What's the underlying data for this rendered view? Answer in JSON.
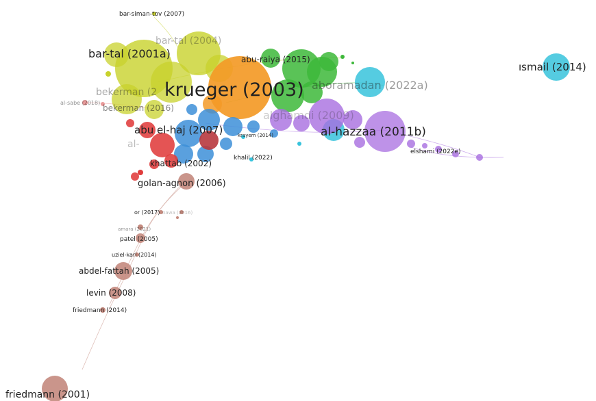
{
  "clusters": {
    "yellow": "#c8d22c",
    "orange": "#f39a27",
    "green": "#3db83a",
    "cyan": "#37c3dc",
    "purple": "#a86ee0",
    "blue": "#3d8fd8",
    "red": "#e03c3c",
    "brown": "#c48a7e",
    "pink": "#e99a9a"
  },
  "labels": {
    "bar_siman_tov": "bar-siman-tov (2007)",
    "bar_tal_2004": "bar-tal (2004)",
    "bar_tal_2001a": "bar-tal (2001a)",
    "bekerman_a": "bekerman (2",
    "al_sabe": "al-sabe (2018)",
    "bekerman_b": "bekerman (2016)",
    "krueger": "krueger (2003)",
    "abu_raiya": "abu-raiya (2015)",
    "abu_ramadan": "aboramadan (2022a)",
    "ismail": "ısmail (2014)",
    "al_hazzaa": "al-hazzaa (2011b)",
    "alghamdi": "alghamdi (2009)",
    "abu_el_haj": "abu el-haj (2007)",
    "krayem": "krayem (2014)",
    "khalil": "khalil (2022)",
    "elshami": "elshami (2022e)",
    "al_faded": "al-",
    "khattab": "khattab (2002)",
    "golan_agnon": "golan-agnon (2006)",
    "or": "or (2017)",
    "nawa": "nawa (2016)",
    "amara": "amara (2021)",
    "patel": "patel (2005)",
    "uziel_karl": "uziel-karl (2014)",
    "abdel_fattah": "abdel-fattah (2005)",
    "levin": "levin (2008)",
    "friedmann_2014": "friedmann (2014)",
    "friedmann_2001": "friedmann (2001)"
  }
}
